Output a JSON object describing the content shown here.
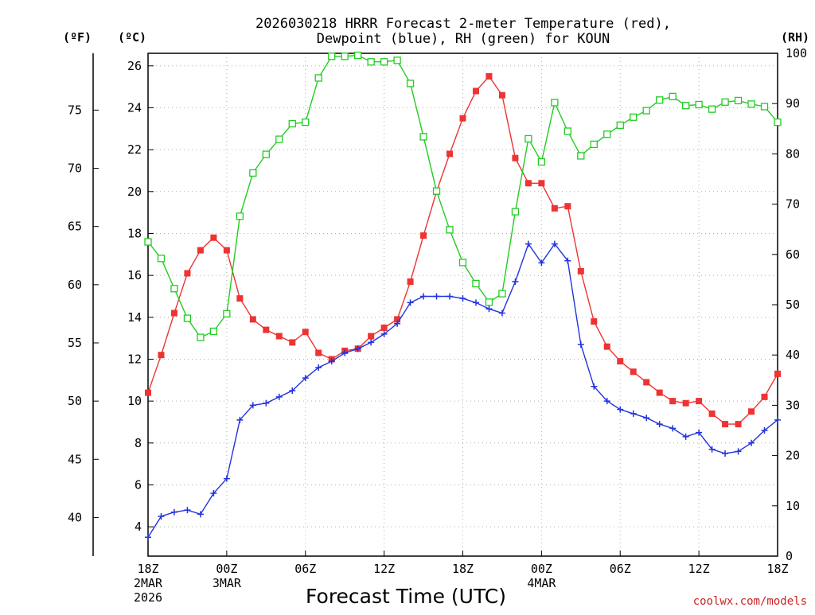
{
  "chart_data": {
    "type": "line",
    "title_line1": "2026030218 HRRR Forecast 2-meter Temperature (red),",
    "title_line2": "Dewpoint (blue), RH (green) for KOUN",
    "xlabel": "Forecast Time (UTC)",
    "credit": "coolwx.com/models",
    "axis_units": {
      "fahrenheit": "(ºF)",
      "celsius": "(ºC)",
      "rh": "(RH)"
    },
    "celsius_axis": {
      "range": [
        2.6,
        26.6
      ],
      "ticks": [
        4,
        6,
        8,
        10,
        12,
        14,
        16,
        18,
        20,
        22,
        24,
        26
      ]
    },
    "fahrenheit_ticks": [
      40,
      45,
      50,
      55,
      60,
      65,
      70,
      75
    ],
    "rh_axis": {
      "range": [
        0,
        100
      ],
      "ticks": [
        0,
        10,
        20,
        30,
        40,
        50,
        60,
        70,
        80,
        90,
        100
      ]
    },
    "x_range_hours": [
      0,
      48
    ],
    "x_ticks": [
      {
        "hour": 0,
        "lines": [
          "18Z",
          "2MAR",
          "2026"
        ]
      },
      {
        "hour": 6,
        "lines": [
          "00Z",
          "3MAR"
        ]
      },
      {
        "hour": 12,
        "lines": [
          "06Z"
        ]
      },
      {
        "hour": 18,
        "lines": [
          "12Z"
        ]
      },
      {
        "hour": 24,
        "lines": [
          "18Z"
        ]
      },
      {
        "hour": 30,
        "lines": [
          "00Z",
          "4MAR"
        ]
      },
      {
        "hour": 36,
        "lines": [
          "06Z"
        ]
      },
      {
        "hour": 42,
        "lines": [
          "12Z"
        ]
      },
      {
        "hour": 48,
        "lines": [
          "18Z"
        ]
      }
    ],
    "series": [
      {
        "name": "Temperature",
        "color": "#ee3333",
        "marker": "square-filled",
        "axis": "celsius",
        "values": [
          10.4,
          12.2,
          14.2,
          16.1,
          17.2,
          17.8,
          17.2,
          14.9,
          13.9,
          13.4,
          13.1,
          12.8,
          13.3,
          12.3,
          12.0,
          12.4,
          12.5,
          13.1,
          13.5,
          13.9,
          15.7,
          17.9,
          20.0,
          21.8,
          23.5,
          24.8,
          25.5,
          24.6,
          21.6,
          20.4,
          20.4,
          19.2,
          19.3,
          16.2,
          13.8,
          12.6,
          11.9,
          11.4,
          10.9,
          10.4,
          10.0,
          9.9,
          10.0,
          9.4,
          8.9,
          8.9,
          9.5,
          10.2,
          11.3
        ]
      },
      {
        "name": "Dewpoint",
        "color": "#2233dd",
        "marker": "plus",
        "axis": "celsius",
        "values": [
          3.5,
          4.5,
          4.7,
          4.8,
          4.6,
          5.6,
          6.3,
          9.1,
          9.8,
          9.9,
          10.2,
          10.5,
          11.1,
          11.6,
          11.9,
          12.3,
          12.5,
          12.8,
          13.2,
          13.7,
          14.7,
          15.0,
          15.0,
          15.0,
          14.9,
          14.7,
          14.4,
          14.2,
          15.7,
          17.5,
          16.6,
          17.5,
          16.7,
          12.7,
          10.7,
          10.0,
          9.6,
          9.4,
          9.2,
          8.9,
          8.7,
          8.3,
          8.5,
          7.7,
          7.5,
          7.6,
          8.0,
          8.6,
          9.1
        ]
      },
      {
        "name": "RH",
        "color": "#22cc22",
        "marker": "square-open",
        "axis": "rh",
        "values": [
          62.5,
          59.2,
          53.2,
          47.3,
          43.5,
          44.7,
          48.2,
          67.6,
          76.2,
          79.9,
          82.9,
          86.0,
          86.3,
          95.1,
          99.4,
          99.4,
          99.6,
          98.3,
          98.3,
          98.6,
          94.0,
          83.4,
          72.6,
          64.9,
          58.4,
          54.2,
          50.5,
          52.2,
          68.5,
          83.0,
          78.4,
          90.2,
          84.5,
          79.6,
          81.9,
          83.9,
          85.7,
          87.3,
          88.6,
          90.7,
          91.4,
          89.6,
          89.8,
          88.9,
          90.3,
          90.6,
          89.9,
          89.4,
          86.3
        ]
      }
    ]
  }
}
